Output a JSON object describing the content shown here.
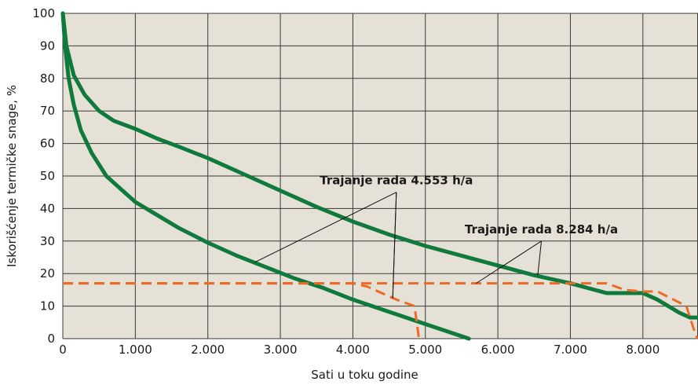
{
  "colors": {
    "plot_bg": "#e6e1d6",
    "grid": "#3a3a3a",
    "curve": "#0f7a3c",
    "dashed": "#ea6a26"
  },
  "chart_data": {
    "type": "line",
    "xlabel": "Sati u toku godine",
    "ylabel": "Iskorišćenje termičke snage, %",
    "xlim": [
      0,
      8760
    ],
    "ylim": [
      0,
      100
    ],
    "x_ticks": [
      0,
      1000,
      2000,
      3000,
      4000,
      5000,
      6000,
      7000,
      8000
    ],
    "x_tick_labels": [
      "0",
      "1.000",
      "2.000",
      "3.000",
      "4.000",
      "5.000",
      "6.000",
      "7.000",
      "8.000"
    ],
    "y_ticks": [
      0,
      10,
      20,
      30,
      40,
      50,
      60,
      70,
      80,
      90,
      100
    ],
    "y_tick_labels": [
      "0",
      "10",
      "20",
      "30",
      "40",
      "50",
      "60",
      "70",
      "80",
      "90",
      "100"
    ],
    "grid": true,
    "series": [
      {
        "style": "solid",
        "color": "#0f7a3c",
        "x": [
          0,
          30,
          80,
          150,
          250,
          400,
          600,
          800,
          1000,
          1300,
          1600,
          2000,
          2400,
          2800,
          3200,
          3600,
          4000,
          4400,
          4800,
          5200,
          5600
        ],
        "y": [
          100,
          90,
          80,
          72,
          64,
          57,
          50,
          46,
          42,
          38,
          34,
          29.5,
          25.5,
          22,
          18.5,
          15.5,
          12,
          9,
          6,
          3,
          0
        ]
      },
      {
        "style": "solid",
        "color": "#0f7a3c",
        "x": [
          0,
          50,
          150,
          300,
          500,
          700,
          1000,
          1300,
          1600,
          2000,
          2500,
          3000,
          3500,
          4000,
          4500,
          5000,
          5500,
          6000,
          6500,
          7000,
          7500,
          8000,
          8200,
          8500,
          8650,
          8760
        ],
        "y": [
          100,
          90,
          81,
          75,
          70,
          67,
          64.5,
          61.5,
          59,
          55.5,
          50.5,
          45.5,
          40.5,
          36,
          32,
          28.5,
          25.5,
          22.5,
          19.5,
          17,
          14,
          14,
          12,
          8,
          6.5,
          6.5
        ]
      },
      {
        "style": "dashed",
        "color": "#ea6a26",
        "x": [
          0,
          4000,
          4200,
          4600,
          4850,
          4900,
          4910
        ],
        "y": [
          17,
          17,
          16,
          12,
          10,
          2,
          0
        ]
      },
      {
        "style": "dashed",
        "color": "#ea6a26",
        "x": [
          0,
          7500,
          7750,
          8000,
          8200,
          8600,
          8700,
          8750
        ],
        "y": [
          17,
          17,
          15,
          14.5,
          14.5,
          10,
          3,
          0
        ]
      }
    ],
    "annotations": [
      {
        "text": "Trajanje rada 4.553 h/a",
        "anchor": [
          4600,
          45
        ],
        "targets": [
          [
            2650,
            23.5
          ],
          [
            4550,
            12.5
          ],
          [
            4550,
            12.5
          ]
        ]
      },
      {
        "text": "Trajanje rada 8.284 h/a",
        "anchor": [
          6600,
          30
        ],
        "targets": [
          [
            5700,
            17
          ],
          [
            6550,
            19.5
          ]
        ]
      }
    ]
  }
}
